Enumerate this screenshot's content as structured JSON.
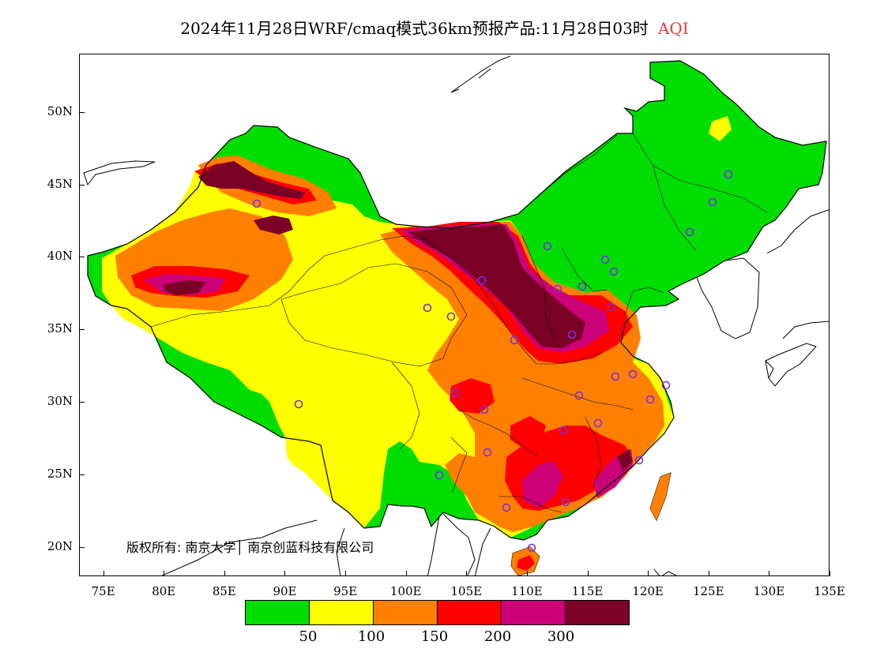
{
  "title": {
    "text": "2024年11月28日WRF/cmaq模式36km预报产品:11月28日03时",
    "variable": "AQI"
  },
  "copyright": "版权所有: 南京大学│ 南京创蓝科技有限公司",
  "axes": {
    "lat_labels": [
      "50N",
      "45N",
      "40N",
      "35N",
      "30N",
      "25N",
      "20N"
    ],
    "lon_labels": [
      "75E",
      "80E",
      "85E",
      "90E",
      "95E",
      "100E",
      "105E",
      "110E",
      "115E",
      "120E",
      "125E",
      "130E",
      "135E"
    ],
    "lat_range": [
      18,
      54
    ],
    "lon_range": [
      73,
      135
    ]
  },
  "legend": {
    "colors": [
      "#00dd00",
      "#ffff00",
      "#ff8000",
      "#ff0000",
      "#cc0077",
      "#7a0026"
    ],
    "labels": [
      "50",
      "100",
      "150",
      "200",
      "300"
    ]
  },
  "colors": {
    "station_marker": "#7b2fe0",
    "border": "#000000"
  }
}
